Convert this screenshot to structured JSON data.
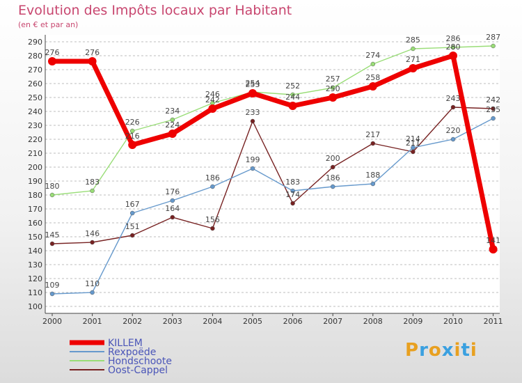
{
  "chart_data": {
    "type": "line",
    "title": "Evolution des Impôts locaux par Habitant",
    "subtitle": "(en € et par an)",
    "x": [
      "2000",
      "2001",
      "2002",
      "2003",
      "2004",
      "2005",
      "2006",
      "2007",
      "2008",
      "2009",
      "2010",
      "2011"
    ],
    "ylim": [
      100,
      290
    ],
    "yticks": [
      100,
      110,
      120,
      130,
      140,
      150,
      160,
      170,
      180,
      190,
      200,
      210,
      220,
      230,
      240,
      250,
      260,
      270,
      280,
      290
    ],
    "grid": "horizontal-dashed",
    "legend_position": "bottom-left",
    "series": [
      {
        "name": "KILLEM",
        "color": "#ee0000",
        "values": [
          276,
          276,
          216,
          224,
          242,
          253,
          244,
          250,
          258,
          271,
          280,
          141
        ]
      },
      {
        "name": "Rexpoëde",
        "color": "#6699cc",
        "values": [
          109,
          110,
          167,
          176,
          186,
          199,
          183,
          186,
          188,
          214,
          220,
          235
        ]
      },
      {
        "name": "Hondschoote",
        "color": "#99dd77",
        "values": [
          180,
          183,
          226,
          234,
          246,
          254,
          252,
          257,
          274,
          285,
          286,
          287
        ]
      },
      {
        "name": "Oost-Cappel",
        "color": "#772222",
        "values": [
          145,
          146,
          151,
          164,
          156,
          233,
          174,
          200,
          217,
          211,
          243,
          242
        ]
      }
    ]
  },
  "logo": {
    "letters": [
      "P",
      "r",
      "o",
      "x",
      "i",
      "t",
      "i"
    ],
    "colors": [
      "#e8a020",
      "#3aa0e0",
      "#e8a020",
      "#3aa0e0",
      "#e8a020",
      "#3aa0e0",
      "#e8a020"
    ]
  }
}
